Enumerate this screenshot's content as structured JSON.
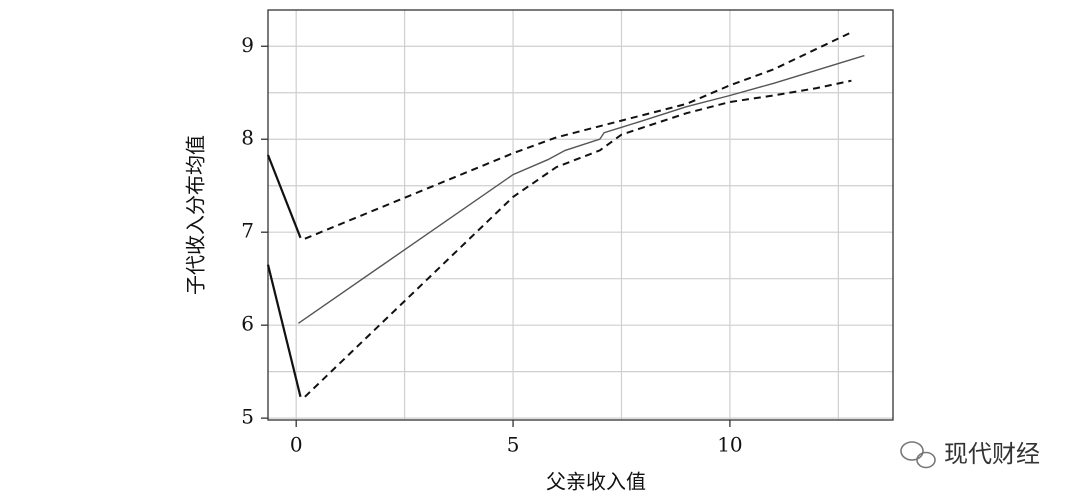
{
  "chart_data": {
    "type": "line",
    "x_label": "父亲收入值",
    "y_label": "子代收入分布均值",
    "xlim": [
      -0.65,
      13.76
    ],
    "ylim": [
      4.98,
      9.39
    ],
    "xticks": [
      0,
      5,
      10
    ],
    "yticks": [
      5,
      6,
      7,
      8,
      9
    ],
    "xgrid": [
      0,
      2.5,
      5,
      7.5,
      10,
      12.5
    ],
    "ygrid": [
      5,
      5.5,
      6,
      6.5,
      7,
      7.5,
      8,
      8.5,
      9
    ],
    "grid": true,
    "series": [
      {
        "color": "#555555",
        "line_style": "solid",
        "x": [
          0.05,
          5,
          5.8,
          6.2,
          7,
          7.1,
          8,
          9,
          10,
          11,
          13.1
        ],
        "values": [
          6.02,
          7.62,
          7.78,
          7.88,
          8.0,
          8.07,
          8.2,
          8.35,
          8.47,
          8.6,
          8.9
        ]
      },
      {
        "color": "#111111",
        "line_style": "dashed",
        "x": [
          0.2,
          5,
          6,
          7.5,
          9,
          10,
          11,
          12.8
        ],
        "values": [
          6.93,
          7.85,
          8.02,
          8.2,
          8.38,
          8.58,
          8.75,
          9.15
        ]
      },
      {
        "color": "#111111",
        "line_style": "dashed",
        "x": [
          0.2,
          5,
          6,
          7,
          7.5,
          9,
          10,
          11,
          12,
          12.8
        ],
        "values": [
          5.23,
          7.38,
          7.7,
          7.88,
          8.05,
          8.28,
          8.4,
          8.47,
          8.55,
          8.63
        ]
      },
      {
        "color": "#111111",
        "line_style": "solid",
        "x": [
          -0.65,
          0.1
        ],
        "values": [
          7.83,
          6.94
        ]
      },
      {
        "color": "#111111",
        "line_style": "solid",
        "x": [
          -0.65,
          0.1
        ],
        "values": [
          6.65,
          5.23
        ]
      }
    ],
    "watermark": "现代财经"
  }
}
